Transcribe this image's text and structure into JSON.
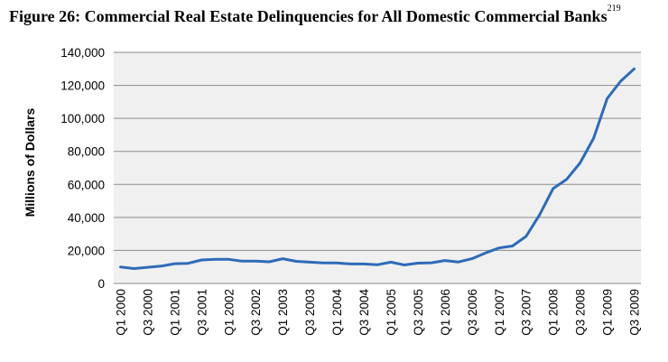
{
  "figure": {
    "title": "Figure 26: Commercial Real Estate Delinquencies for All Domestic Commercial Banks",
    "footnote": "219"
  },
  "chart_data": {
    "type": "line",
    "title": "Figure 26: Commercial Real Estate Delinquencies for All Domestic Commercial Banks",
    "xlabel": "",
    "ylabel": "Millions of Dollars",
    "ylim": [
      0,
      140000
    ],
    "yticks": [
      "0",
      "20,000",
      "40,000",
      "60,000",
      "80,000",
      "100,000",
      "120,000",
      "140,000"
    ],
    "grid": true,
    "legend": "none",
    "line_color": "#2E6BB8",
    "plot_background": "#F0F0F0",
    "categories": [
      "Q1 2000",
      "Q2 2000",
      "Q3 2000",
      "Q4 2000",
      "Q1 2001",
      "Q2 2001",
      "Q3 2001",
      "Q4 2001",
      "Q1 2002",
      "Q2 2002",
      "Q3 2002",
      "Q4 2002",
      "Q1 2003",
      "Q2 2003",
      "Q3 2003",
      "Q4 2003",
      "Q1 2004",
      "Q2 2004",
      "Q3 2004",
      "Q4 2004",
      "Q1 2005",
      "Q2 2005",
      "Q3 2005",
      "Q4 2005",
      "Q1 2006",
      "Q2 2006",
      "Q3 2006",
      "Q4 2006",
      "Q1 2007",
      "Q2 2007",
      "Q3 2007",
      "Q4 2007",
      "Q1 2008",
      "Q2 2008",
      "Q3 2008",
      "Q4 2008",
      "Q1 2009",
      "Q2 2009",
      "Q3 2009"
    ],
    "tick_labels": [
      "Q1 2000",
      "Q3 2000",
      "Q1 2001",
      "Q3 2001",
      "Q1 2002",
      "Q3 2002",
      "Q1 2003",
      "Q3 2003",
      "Q1 2004",
      "Q3 2004",
      "Q1 2005",
      "Q3 2005",
      "Q1 2006",
      "Q3 2006",
      "Q1 2007",
      "Q3 2007",
      "Q1 2008",
      "Q3 2008",
      "Q1 2009",
      "Q3 2009"
    ],
    "values": [
      10000,
      9000,
      9800,
      10500,
      12000,
      12200,
      14200,
      14600,
      14600,
      13500,
      13500,
      13100,
      15000,
      13400,
      12900,
      12400,
      12400,
      11800,
      11800,
      11300,
      12900,
      11200,
      12300,
      12500,
      13900,
      13000,
      15000,
      18500,
      21500,
      22700,
      28500,
      41500,
      57500,
      63000,
      73000,
      88000,
      112000,
      122500,
      130000
    ]
  }
}
